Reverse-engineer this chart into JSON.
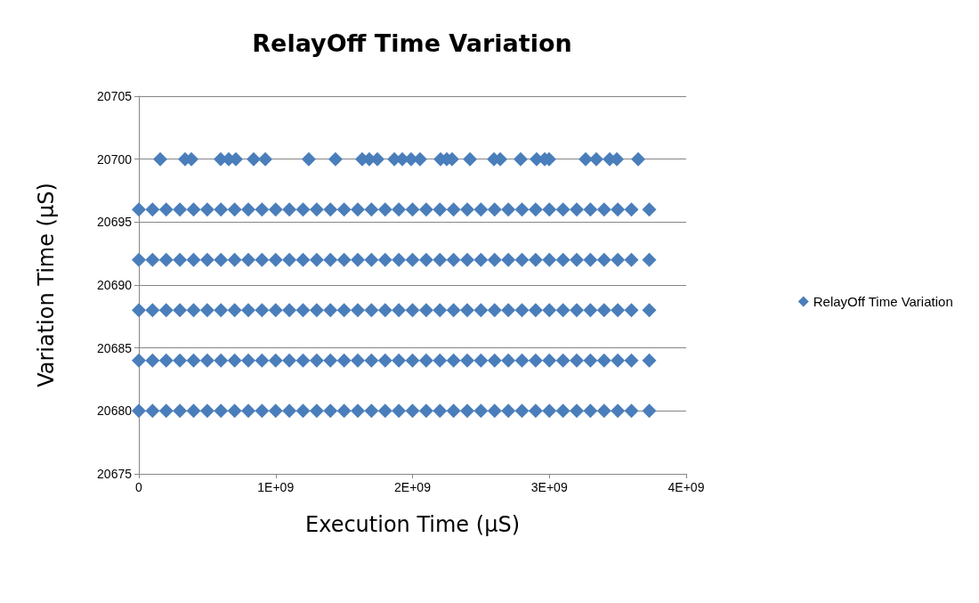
{
  "chart_data": {
    "type": "scatter",
    "title": "RelayOff Time Variation",
    "xlabel": "Execution Time (µS)",
    "ylabel": "Variation Time (µS)",
    "x": [
      0,
      100000000,
      200000000,
      300000000,
      400000000,
      500000000,
      600000000,
      700000000,
      800000000,
      900000000,
      1000000000,
      1100000000,
      1200000000,
      1300000000,
      1400000000,
      1500000000,
      1600000000,
      1700000000,
      1800000000,
      1900000000,
      2000000000,
      2100000000,
      2200000000,
      2300000000,
      2400000000,
      2500000000,
      2600000000,
      2700000000,
      2800000000,
      2900000000,
      3000000000,
      3100000000,
      3200000000,
      3300000000,
      3400000000,
      3500000000,
      3600000000,
      3730000000
    ],
    "series": [
      {
        "name": "RelayOff Time Variation",
        "color": "#4a7ebb",
        "x": [
          156000000,
          338000000,
          384000000,
          598000000,
          657000000,
          709000000,
          839000000,
          924000000,
          1242000000,
          1437000000,
          1632000000,
          1684000000,
          1743000000,
          1867000000,
          1925000000,
          1990000000,
          2055000000,
          2205000000,
          2250000000,
          2289000000,
          2420000000,
          2595000000,
          2641000000,
          2790000000,
          2907000000,
          2966000000,
          2998000000,
          3265000000,
          3343000000,
          3441000000,
          3493000000,
          3649000000
        ],
        "values": [
          20700,
          20700,
          20700,
          20700,
          20700,
          20700,
          20700,
          20700,
          20700,
          20700,
          20700,
          20700,
          20700,
          20700,
          20700,
          20700,
          20700,
          20700,
          20700,
          20700,
          20700,
          20700,
          20700,
          20700,
          20700,
          20700,
          20700,
          20700,
          20700,
          20700,
          20700,
          20700
        ]
      },
      {
        "color": "#4a7ebb",
        "values": [
          20696,
          20696,
          20696,
          20696,
          20696,
          20696,
          20696,
          20696,
          20696,
          20696,
          20696,
          20696,
          20696,
          20696,
          20696,
          20696,
          20696,
          20696,
          20696,
          20696,
          20696,
          20696,
          20696,
          20696,
          20696,
          20696,
          20696,
          20696,
          20696,
          20696,
          20696,
          20696,
          20696,
          20696,
          20696,
          20696,
          20696,
          20696
        ]
      },
      {
        "color": "#4a7ebb",
        "values": [
          20692,
          20692,
          20692,
          20692,
          20692,
          20692,
          20692,
          20692,
          20692,
          20692,
          20692,
          20692,
          20692,
          20692,
          20692,
          20692,
          20692,
          20692,
          20692,
          20692,
          20692,
          20692,
          20692,
          20692,
          20692,
          20692,
          20692,
          20692,
          20692,
          20692,
          20692,
          20692,
          20692,
          20692,
          20692,
          20692,
          20692,
          20692
        ]
      },
      {
        "color": "#4a7ebb",
        "values": [
          20688,
          20688,
          20688,
          20688,
          20688,
          20688,
          20688,
          20688,
          20688,
          20688,
          20688,
          20688,
          20688,
          20688,
          20688,
          20688,
          20688,
          20688,
          20688,
          20688,
          20688,
          20688,
          20688,
          20688,
          20688,
          20688,
          20688,
          20688,
          20688,
          20688,
          20688,
          20688,
          20688,
          20688,
          20688,
          20688,
          20688,
          20688
        ]
      },
      {
        "color": "#4a7ebb",
        "values": [
          20684,
          20684,
          20684,
          20684,
          20684,
          20684,
          20684,
          20684,
          20684,
          20684,
          20684,
          20684,
          20684,
          20684,
          20684,
          20684,
          20684,
          20684,
          20684,
          20684,
          20684,
          20684,
          20684,
          20684,
          20684,
          20684,
          20684,
          20684,
          20684,
          20684,
          20684,
          20684,
          20684,
          20684,
          20684,
          20684,
          20684,
          20684
        ]
      },
      {
        "color": "#4a7ebb",
        "values": [
          20680,
          20680,
          20680,
          20680,
          20680,
          20680,
          20680,
          20680,
          20680,
          20680,
          20680,
          20680,
          20680,
          20680,
          20680,
          20680,
          20680,
          20680,
          20680,
          20680,
          20680,
          20680,
          20680,
          20680,
          20680,
          20680,
          20680,
          20680,
          20680,
          20680,
          20680,
          20680,
          20680,
          20680,
          20680,
          20680,
          20680,
          20680
        ]
      }
    ],
    "xlim": [
      0,
      4000000000
    ],
    "xticks": [
      0,
      {
        "value": 1000000000,
        "label": "1E+09"
      },
      {
        "value": 2000000000,
        "label": "2E+09"
      },
      {
        "value": 3000000000,
        "label": "3E+09"
      },
      {
        "value": 4000000000,
        "label": "4E+09"
      }
    ],
    "ylim": [
      20675,
      20705
    ],
    "yticks": [
      20675,
      20680,
      20685,
      20690,
      20695,
      20700,
      20705
    ],
    "grid": "y",
    "legend": "right",
    "marker": "diamond"
  }
}
